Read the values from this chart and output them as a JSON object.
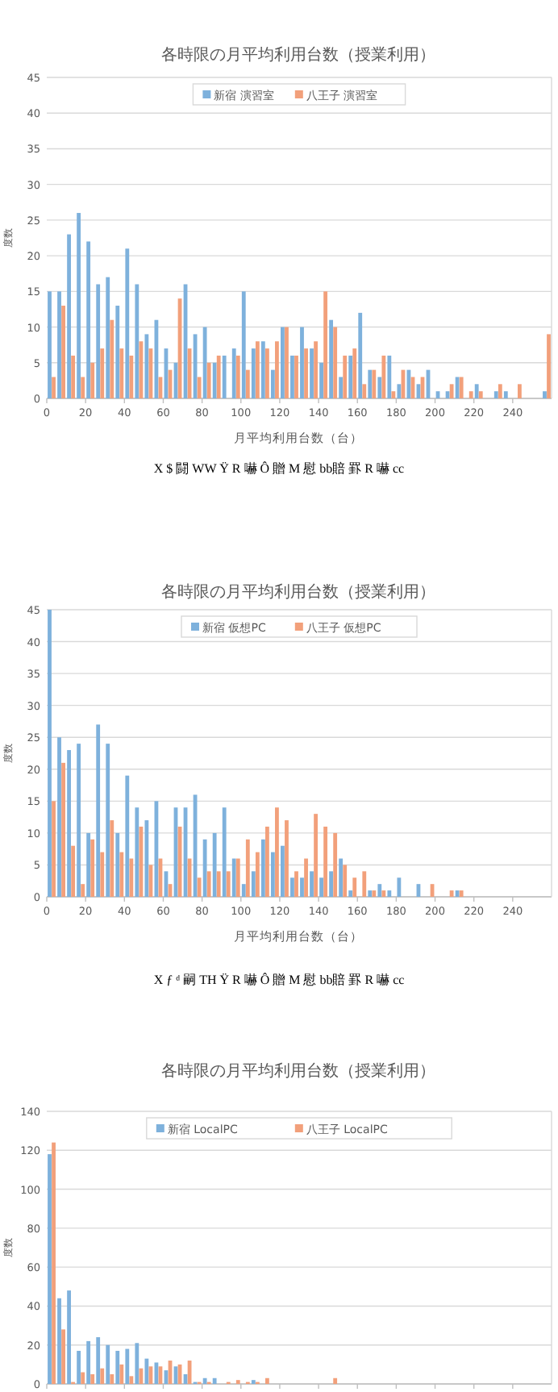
{
  "chart_data": [
    {
      "type": "bar",
      "title": "各時限の月平均利用台数（授業利用）",
      "xlabel": "月平均利用台数（台）",
      "ylabel": "度数",
      "x": [
        2.5,
        7.5,
        12.5,
        17.5,
        22.5,
        27.5,
        32.5,
        37.5,
        42.5,
        47.5,
        52.5,
        57.5,
        62.5,
        67.5,
        72.5,
        77.5,
        82.5,
        87.5,
        92.5,
        97.5,
        102.5,
        107.5,
        112.5,
        117.5,
        122.5,
        127.5,
        132.5,
        137.5,
        142.5,
        147.5,
        152.5,
        157.5,
        162.5,
        167.5,
        172.5,
        177.5,
        182.5,
        187.5,
        192.5,
        197.5,
        202.5,
        207.5,
        212.5,
        217.5,
        222.5,
        227.5,
        232.5,
        237.5,
        242.5,
        247.5,
        252.5,
        257.5
      ],
      "series": [
        {
          "name": "新宿 演習室",
          "color": "#7eb1dc",
          "values": [
            15,
            15,
            23,
            26,
            22,
            16,
            17,
            13,
            21,
            16,
            9,
            11,
            7,
            5,
            16,
            9,
            10,
            5,
            6,
            7,
            15,
            7,
            8,
            4,
            10,
            6,
            10,
            7,
            5,
            11,
            3,
            6,
            12,
            4,
            3,
            6,
            2,
            4,
            2,
            4,
            1,
            1,
            3,
            0,
            2,
            0,
            1,
            1,
            0,
            0,
            0,
            1
          ]
        },
        {
          "name": "八王子 演習室",
          "color": "#f2a07b",
          "values": [
            3,
            13,
            6,
            3,
            5,
            7,
            11,
            7,
            6,
            8,
            7,
            3,
            4,
            14,
            7,
            3,
            5,
            6,
            0,
            6,
            4,
            8,
            7,
            8,
            10,
            6,
            7,
            8,
            15,
            10,
            6,
            7,
            2,
            4,
            6,
            1,
            4,
            3,
            3,
            0,
            0,
            2,
            3,
            1,
            1,
            0,
            2,
            0,
            2,
            0,
            0,
            9
          ]
        }
      ],
      "xlim": [
        0,
        260
      ],
      "xticks": [
        0,
        20,
        40,
        60,
        80,
        100,
        120,
        140,
        160,
        180,
        200,
        220,
        240
      ],
      "ylim": [
        0,
        45
      ],
      "yticks": [
        0,
        5,
        10,
        15,
        20,
        25,
        30,
        35,
        40,
        45
      ],
      "grid": "y",
      "legend": "top",
      "annotations": [
        "X  $  闘 WW Ÿ R 嚇 Ô 贈 M 慰 bb賠 罫 R 嚇 cc"
      ]
    },
    {
      "type": "bar",
      "title": "各時限の月平均利用台数（授業利用）",
      "xlabel": "月平均利用台数（台）",
      "ylabel": "度数",
      "x": [
        2.5,
        7.5,
        12.5,
        17.5,
        22.5,
        27.5,
        32.5,
        37.5,
        42.5,
        47.5,
        52.5,
        57.5,
        62.5,
        67.5,
        72.5,
        77.5,
        82.5,
        87.5,
        92.5,
        97.5,
        102.5,
        107.5,
        112.5,
        117.5,
        122.5,
        127.5,
        132.5,
        137.5,
        142.5,
        147.5,
        152.5,
        157.5,
        162.5,
        167.5,
        172.5,
        177.5,
        182.5,
        187.5,
        192.5,
        197.5,
        202.5,
        207.5,
        212.5,
        217.5,
        222.5,
        227.5,
        232.5,
        237.5,
        242.5,
        247.5,
        252.5,
        257.5
      ],
      "series": [
        {
          "name": "新宿 仮想PC",
          "color": "#7eb1dc",
          "values": [
            45,
            25,
            23,
            24,
            10,
            27,
            24,
            10,
            19,
            14,
            12,
            15,
            4,
            14,
            14,
            16,
            9,
            10,
            14,
            6,
            2,
            4,
            9,
            7,
            8,
            3,
            3,
            4,
            3,
            4,
            6,
            1,
            0,
            1,
            2,
            1,
            3,
            0,
            2,
            0,
            0,
            0,
            1,
            0,
            0,
            0,
            0,
            0,
            0,
            0,
            0,
            0
          ]
        },
        {
          "name": "八王子 仮想PC",
          "color": "#f2a07b",
          "values": [
            15,
            21,
            8,
            2,
            9,
            7,
            12,
            7,
            6,
            11,
            5,
            6,
            2,
            11,
            6,
            3,
            4,
            4,
            4,
            6,
            9,
            7,
            11,
            14,
            12,
            4,
            6,
            13,
            11,
            10,
            5,
            3,
            4,
            1,
            1,
            0,
            0,
            0,
            0,
            2,
            0,
            1,
            1,
            0,
            0,
            0,
            0,
            0,
            0,
            0,
            0,
            0
          ]
        }
      ],
      "xlim": [
        0,
        260
      ],
      "xticks": [
        0,
        20,
        40,
        60,
        80,
        100,
        120,
        140,
        160,
        180,
        200,
        220,
        240
      ],
      "ylim": [
        0,
        45
      ],
      "yticks": [
        0,
        5,
        10,
        15,
        20,
        25,
        30,
        35,
        40,
        45
      ],
      "grid": "y",
      "legend": "top",
      "annotations": [
        "X  ƒ  ᵈ 嗣 TH Ÿ R 嚇 Ô 贈 M 慰 bb賠 罫 R 嚇 cc"
      ]
    },
    {
      "type": "bar",
      "title": "各時限の月平均利用台数（授業利用）",
      "ylabel": "度数",
      "x": [
        2.5,
        7.5,
        12.5,
        17.5,
        22.5,
        27.5,
        32.5,
        37.5,
        42.5,
        47.5,
        52.5,
        57.5,
        62.5,
        67.5,
        72.5,
        77.5,
        82.5,
        87.5,
        92.5,
        97.5,
        102.5,
        107.5,
        112.5,
        117.5,
        122.5,
        127.5,
        132.5,
        137.5,
        142.5,
        147.5,
        152.5,
        157.5,
        162.5,
        167.5,
        172.5,
        177.5,
        182.5,
        187.5,
        192.5,
        197.5,
        202.5,
        207.5,
        212.5,
        217.5,
        222.5,
        227.5,
        232.5,
        237.5,
        242.5,
        247.5,
        252.5,
        257.5
      ],
      "series": [
        {
          "name": "新宿 LocalPC",
          "color": "#7eb1dc",
          "values": [
            118,
            44,
            48,
            17,
            22,
            24,
            20,
            17,
            18,
            21,
            13,
            11,
            7,
            9,
            5,
            1,
            3,
            3,
            0,
            0,
            0,
            2,
            0,
            0,
            0,
            0,
            0,
            0,
            0,
            0,
            0,
            0,
            0,
            0,
            0,
            0,
            0,
            0,
            0,
            0,
            0,
            0,
            0,
            0,
            0,
            0,
            0,
            0,
            0,
            0,
            0,
            0
          ]
        },
        {
          "name": "八王子 LocalPC",
          "color": "#f2a07b",
          "values": [
            124,
            28,
            1,
            6,
            5,
            8,
            5,
            10,
            4,
            8,
            9,
            9,
            12,
            10,
            12,
            1,
            1,
            0,
            1,
            2,
            1,
            1,
            3,
            0,
            0,
            0,
            0,
            0,
            0,
            3,
            0,
            0,
            0,
            0,
            0,
            0,
            0,
            0,
            0,
            0,
            0,
            0,
            0,
            0,
            0,
            0,
            0,
            0,
            0,
            0,
            0,
            0
          ]
        }
      ],
      "xlim": [
        0,
        260
      ],
      "xticks": [
        0,
        20,
        40,
        60,
        80,
        100,
        120,
        140,
        160,
        180,
        200,
        220,
        240
      ],
      "ylim": [
        0,
        140
      ],
      "yticks": [
        0,
        20,
        40,
        60,
        80,
        100,
        120,
        140
      ],
      "grid": "y",
      "legend": "top",
      "tick_labels": "y"
    }
  ]
}
